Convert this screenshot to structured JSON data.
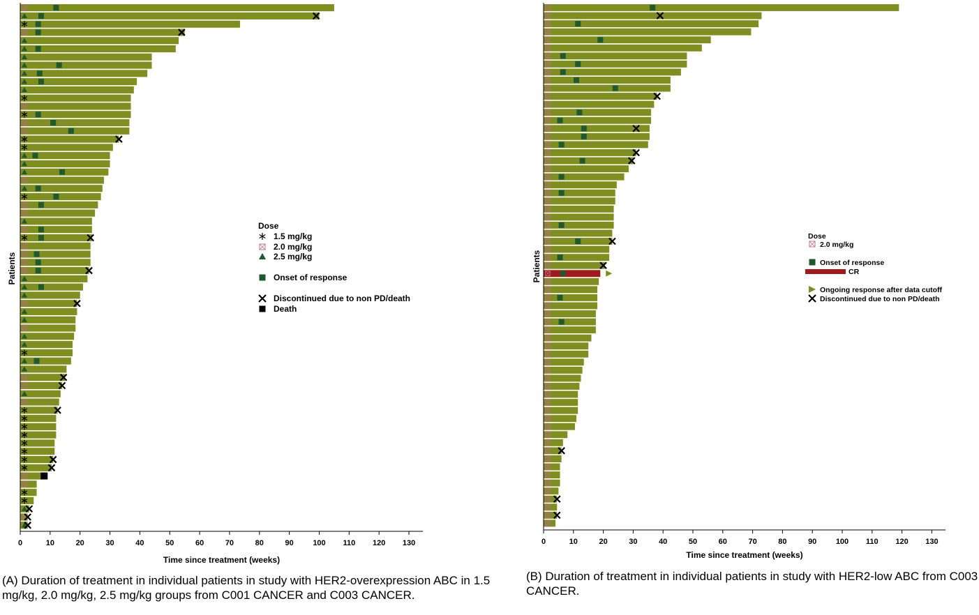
{
  "colors": {
    "bar": "#7e8f1f",
    "bar_cr": "#a3191b",
    "onset": "#1f5a2f",
    "triangle": "#1f5a2f",
    "ongoing": "#7e8f1f",
    "dose20": "#b86a7a",
    "axis": "#000000"
  },
  "captions": {
    "left": "(A) Duration of treatment in individual patients in study with HER2-overexpression ABC in 1.5 mg/kg, 2.0 mg/kg, 2.5 mg/kg groups from C001 CANCER and C003 CANCER.",
    "right": "(B) Duration of treatment in individual patients in study with HER2-low ABC from C003 CANCER."
  },
  "chart_data": [
    {
      "type": "bar",
      "orientation": "horizontal",
      "xlabel": "Time since treatment (weeks)",
      "ylabel": "Patients",
      "xlim": [
        0,
        135
      ],
      "xticks": [
        0,
        10,
        20,
        30,
        40,
        50,
        60,
        70,
        80,
        90,
        100,
        110,
        120,
        130
      ],
      "legend": {
        "title": "Dose",
        "entries": [
          {
            "marker": "asterisk",
            "label": "1.5 mg/kg"
          },
          {
            "marker": "boxx",
            "label": "2.0 mg/kg"
          },
          {
            "marker": "triangle",
            "label": "2.5 mg/kg"
          },
          {
            "marker": "onset",
            "label": "Onset of response"
          },
          {
            "marker": "x",
            "label": "Discontinued due to non PD/death"
          },
          {
            "marker": "death",
            "label": "Death"
          }
        ]
      },
      "patients": [
        {
          "d": 105,
          "dose": "2.0",
          "onset": 12
        },
        {
          "d": 100,
          "dose": "2.5",
          "onset": 7,
          "disc": 99
        },
        {
          "d": 73.5,
          "dose": "1.5",
          "onset": 6
        },
        {
          "d": 55,
          "dose": "2.0",
          "onset": 6,
          "disc": 54
        },
        {
          "d": 53,
          "dose": "2.5"
        },
        {
          "d": 52,
          "dose": "2.5",
          "onset": 6
        },
        {
          "d": 44,
          "dose": "2.5"
        },
        {
          "d": 44,
          "dose": "2.5",
          "onset": 13
        },
        {
          "d": 42.5,
          "dose": "2.5",
          "onset": 6.5
        },
        {
          "d": 39,
          "dose": "2.5",
          "onset": 7
        },
        {
          "d": 38,
          "dose": "2.5"
        },
        {
          "d": 37,
          "dose": "1.5"
        },
        {
          "d": 37,
          "dose": "2.0"
        },
        {
          "d": 37,
          "dose": "1.5",
          "onset": 6
        },
        {
          "d": 36.5,
          "dose": "2.0",
          "onset": 11
        },
        {
          "d": 36.5,
          "dose": "2.0",
          "onset": 17
        },
        {
          "d": 33,
          "dose": "1.5",
          "disc": 33
        },
        {
          "d": 31,
          "dose": "1.5"
        },
        {
          "d": 30,
          "dose": "2.5",
          "onset": 5
        },
        {
          "d": 30,
          "dose": "2.5"
        },
        {
          "d": 29.5,
          "dose": "2.5",
          "onset": 14
        },
        {
          "d": 28,
          "dose": "2.0"
        },
        {
          "d": 27.5,
          "dose": "2.5",
          "onset": 6
        },
        {
          "d": 27,
          "dose": "1.5",
          "onset": 12
        },
        {
          "d": 26,
          "dose": "2.0",
          "onset": 7
        },
        {
          "d": 25,
          "dose": "2.0"
        },
        {
          "d": 24,
          "dose": "2.5"
        },
        {
          "d": 24,
          "dose": "2.0",
          "onset": 7
        },
        {
          "d": 24,
          "dose": "1.5",
          "onset": 7,
          "disc": 23.5
        },
        {
          "d": 23.5,
          "dose": "2.0"
        },
        {
          "d": 23.5,
          "dose": "2.0",
          "onset": 5.5
        },
        {
          "d": 23.5,
          "dose": "2.0",
          "onset": 6
        },
        {
          "d": 23,
          "dose": "2.0",
          "onset": 6,
          "disc": 23
        },
        {
          "d": 22.5,
          "dose": "2.5"
        },
        {
          "d": 21,
          "dose": "2.5",
          "onset": 7
        },
        {
          "d": 20,
          "dose": "2.5"
        },
        {
          "d": 19,
          "dose": "2.0",
          "disc": 19
        },
        {
          "d": 19,
          "dose": "2.5"
        },
        {
          "d": 18.5,
          "dose": "2.5"
        },
        {
          "d": 18.5,
          "dose": "2.0"
        },
        {
          "d": 18,
          "dose": "2.5"
        },
        {
          "d": 17.5,
          "dose": "2.5"
        },
        {
          "d": 17.5,
          "dose": "1.5"
        },
        {
          "d": 17,
          "dose": "2.5",
          "onset": 5.5
        },
        {
          "d": 15.5,
          "dose": "2.5"
        },
        {
          "d": 15,
          "dose": "2.0",
          "disc": 14.5
        },
        {
          "d": 14,
          "dose": "2.0",
          "disc": 14
        },
        {
          "d": 13.5,
          "dose": "2.5"
        },
        {
          "d": 13,
          "dose": "2.0"
        },
        {
          "d": 12.5,
          "dose": "1.5",
          "disc": 12.5
        },
        {
          "d": 12,
          "dose": "1.5"
        },
        {
          "d": 12,
          "dose": "1.5"
        },
        {
          "d": 12,
          "dose": "1.5"
        },
        {
          "d": 11.5,
          "dose": "1.5"
        },
        {
          "d": 11.5,
          "dose": "1.5"
        },
        {
          "d": 11,
          "dose": "1.5",
          "disc": 11
        },
        {
          "d": 10.5,
          "dose": "1.5",
          "disc": 10.5
        },
        {
          "d": 7,
          "dose": "2.0",
          "death": 8
        },
        {
          "d": 5.5,
          "dose": "2.0"
        },
        {
          "d": 5.5,
          "dose": "1.5"
        },
        {
          "d": 4.5,
          "dose": "1.5"
        },
        {
          "d": 3,
          "dose": "2.5",
          "disc": 3
        },
        {
          "d": 2.5,
          "dose": "2.0",
          "disc": 2.5
        },
        {
          "d": 2.5,
          "dose": "2.5",
          "disc": 2.5
        }
      ]
    },
    {
      "type": "bar",
      "orientation": "horizontal",
      "xlabel": "Time since treatment (weeks)",
      "ylabel": "Patients",
      "xlim": [
        0,
        135
      ],
      "xticks": [
        0,
        10,
        20,
        30,
        40,
        50,
        60,
        70,
        80,
        90,
        100,
        110,
        120,
        130
      ],
      "legend": {
        "title": "Dose",
        "entries": [
          {
            "marker": "boxx",
            "label": "2.0 mg/kg"
          },
          {
            "marker": "onset",
            "label": "Onset of response"
          },
          {
            "marker": "crbar",
            "label": "CR"
          },
          {
            "marker": "ongoing",
            "label": "Ongoing response after data cutoff"
          },
          {
            "marker": "x",
            "label": "Discontinued due to non PD/death"
          }
        ]
      },
      "patients": [
        {
          "d": 119,
          "onset": 36.5
        },
        {
          "d": 73,
          "disc": 39
        },
        {
          "d": 72,
          "onset": 11.5
        },
        {
          "d": 69.5
        },
        {
          "d": 56,
          "onset": 19
        },
        {
          "d": 53
        },
        {
          "d": 48,
          "onset": 6.5
        },
        {
          "d": 48,
          "onset": 11.5
        },
        {
          "d": 46,
          "onset": 6.5
        },
        {
          "d": 42.5,
          "onset": 11
        },
        {
          "d": 42.5,
          "onset": 24
        },
        {
          "d": 38,
          "disc": 38
        },
        {
          "d": 37
        },
        {
          "d": 36,
          "onset": 12
        },
        {
          "d": 36,
          "onset": 5.5
        },
        {
          "d": 35.5,
          "onset": 13.5,
          "disc": 31
        },
        {
          "d": 35.5,
          "onset": 13.5
        },
        {
          "d": 35,
          "onset": 6
        },
        {
          "d": 31,
          "disc": 31
        },
        {
          "d": 30,
          "onset": 13,
          "disc": 29.5
        },
        {
          "d": 28.5
        },
        {
          "d": 27,
          "onset": 6
        },
        {
          "d": 24.5
        },
        {
          "d": 24,
          "onset": 6
        },
        {
          "d": 24
        },
        {
          "d": 23.5
        },
        {
          "d": 23.5
        },
        {
          "d": 23.5,
          "onset": 6
        },
        {
          "d": 23
        },
        {
          "d": 23,
          "onset": 11.5,
          "disc": 23
        },
        {
          "d": 22
        },
        {
          "d": 22,
          "onset": 5.5
        },
        {
          "d": 20.5,
          "disc": 20
        },
        {
          "d": 19,
          "onset": 6.5,
          "cr": true,
          "ongoing": 20.5
        },
        {
          "d": 18.5
        },
        {
          "d": 18
        },
        {
          "d": 18,
          "onset": 5.5
        },
        {
          "d": 18
        },
        {
          "d": 17.5
        },
        {
          "d": 17.5,
          "onset": 6
        },
        {
          "d": 17.5
        },
        {
          "d": 16
        },
        {
          "d": 15
        },
        {
          "d": 15
        },
        {
          "d": 13.5
        },
        {
          "d": 13
        },
        {
          "d": 12.5
        },
        {
          "d": 12
        },
        {
          "d": 11.5
        },
        {
          "d": 11.5
        },
        {
          "d": 11.5
        },
        {
          "d": 11
        },
        {
          "d": 10.5
        },
        {
          "d": 8
        },
        {
          "d": 6.5
        },
        {
          "d": 6,
          "disc": 6
        },
        {
          "d": 6
        },
        {
          "d": 5.5
        },
        {
          "d": 5.5
        },
        {
          "d": 5.5
        },
        {
          "d": 5
        },
        {
          "d": 4.5,
          "disc": 4.5
        },
        {
          "d": 4.5
        },
        {
          "d": 4.5,
          "disc": 4.5
        },
        {
          "d": 4
        }
      ]
    }
  ]
}
